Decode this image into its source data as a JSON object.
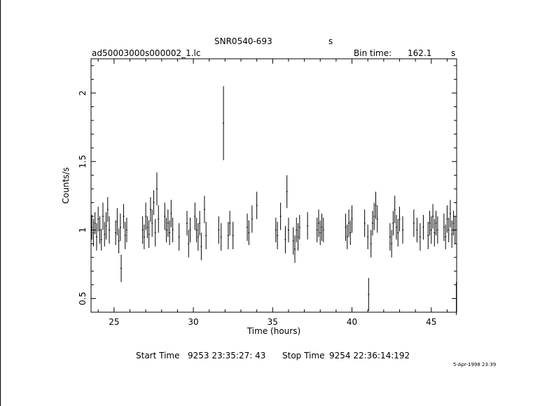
{
  "header": {
    "target": "SNR0540-693",
    "target_suffix": "s",
    "filename": "ad50003000s000002_1.lc",
    "bin_label": "Bin time:",
    "bin_value": "162.1",
    "bin_unit": "s"
  },
  "footer": {
    "start_label": "Start Time",
    "start_value": "9253 23:35:27: 43",
    "stop_label": "Stop Time",
    "stop_value": "9254 22:36:14:192",
    "date_stamp": "5-Apr-1998 23:39"
  },
  "chart_data": {
    "type": "scatter",
    "xlabel": "Time (hours)",
    "ylabel": "Counts/s",
    "xlim": [
      23.55,
      46.6
    ],
    "ylim": [
      0.4,
      2.25
    ],
    "xticks": [
      25,
      30,
      35,
      40,
      45
    ],
    "yticks": [
      0.5,
      1,
      1.5,
      2
    ],
    "ytick_labels": [
      "0.5",
      "1",
      "1.5",
      "2"
    ],
    "series": [
      {
        "points": [
          [
            23.6,
            1.02,
            0.09
          ],
          [
            23.7,
            0.98,
            0.1
          ],
          [
            23.8,
            1.05,
            0.08
          ],
          [
            23.9,
            0.95,
            0.1
          ],
          [
            24.0,
            1.08,
            0.09
          ],
          [
            24.1,
            1.0,
            0.1
          ],
          [
            24.2,
            0.93,
            0.08
          ],
          [
            24.3,
            1.1,
            0.1
          ],
          [
            24.4,
            0.97,
            0.09
          ],
          [
            24.5,
            1.03,
            0.1
          ],
          [
            24.6,
            1.15,
            0.09
          ],
          [
            24.7,
            1.0,
            0.1
          ],
          [
            25.1,
            0.98,
            0.09
          ],
          [
            25.2,
            1.06,
            0.1
          ],
          [
            25.3,
            0.92,
            0.09
          ],
          [
            25.4,
            1.02,
            0.1
          ],
          [
            25.45,
            0.72,
            0.1
          ],
          [
            25.6,
            1.1,
            0.09
          ],
          [
            25.7,
            0.96,
            0.1
          ],
          [
            25.8,
            1.0,
            0.09
          ],
          [
            26.8,
            1.0,
            0.1
          ],
          [
            26.9,
            0.95,
            0.09
          ],
          [
            27.0,
            1.1,
            0.1
          ],
          [
            27.1,
            1.02,
            0.08
          ],
          [
            27.2,
            0.97,
            0.1
          ],
          [
            27.3,
            1.15,
            0.09
          ],
          [
            27.4,
            1.05,
            0.1
          ],
          [
            27.5,
            1.2,
            0.09
          ],
          [
            27.6,
            0.98,
            0.1
          ],
          [
            27.7,
            1.3,
            0.12
          ],
          [
            27.8,
            1.08,
            0.1
          ],
          [
            28.2,
            1.1,
            0.1
          ],
          [
            28.3,
            1.0,
            0.09
          ],
          [
            28.4,
            1.05,
            0.1
          ],
          [
            28.5,
            0.98,
            0.09
          ],
          [
            28.6,
            1.12,
            0.1
          ],
          [
            28.7,
            1.0,
            0.09
          ],
          [
            29.1,
            0.95,
            0.1
          ],
          [
            29.6,
            1.05,
            0.09
          ],
          [
            29.7,
            0.9,
            0.1
          ],
          [
            29.8,
            1.0,
            0.09
          ],
          [
            30.1,
            1.1,
            0.1
          ],
          [
            30.2,
            1.0,
            0.09
          ],
          [
            30.3,
            0.95,
            0.1
          ],
          [
            30.4,
            1.05,
            0.09
          ],
          [
            30.5,
            0.88,
            0.1
          ],
          [
            30.7,
            1.15,
            0.1
          ],
          [
            30.8,
            0.96,
            0.1
          ],
          [
            31.6,
            1.0,
            0.1
          ],
          [
            31.75,
            0.95,
            0.1
          ],
          [
            31.9,
            1.78,
            0.27
          ],
          [
            32.2,
            0.96,
            0.1
          ],
          [
            32.3,
            1.05,
            0.09
          ],
          [
            32.5,
            0.96,
            0.1
          ],
          [
            33.4,
            1.02,
            0.1
          ],
          [
            33.5,
            0.98,
            0.09
          ],
          [
            33.7,
            1.08,
            0.1
          ],
          [
            34.0,
            1.18,
            0.1
          ],
          [
            35.2,
            1.0,
            0.09
          ],
          [
            35.3,
            0.96,
            0.1
          ],
          [
            35.5,
            1.1,
            0.1
          ],
          [
            35.8,
            0.93,
            0.1
          ],
          [
            35.9,
            1.28,
            0.12
          ],
          [
            36.0,
            1.0,
            0.09
          ],
          [
            36.3,
            0.92,
            0.1
          ],
          [
            36.4,
            0.86,
            0.1
          ],
          [
            36.5,
            1.0,
            0.09
          ],
          [
            36.6,
            0.95,
            0.1
          ],
          [
            36.7,
            1.02,
            0.09
          ],
          [
            37.2,
            1.03,
            0.1
          ],
          [
            37.8,
            1.0,
            0.09
          ],
          [
            37.9,
            1.05,
            0.1
          ],
          [
            38.0,
            0.98,
            0.09
          ],
          [
            38.1,
            1.02,
            0.1
          ],
          [
            38.2,
            1.0,
            0.09
          ],
          [
            39.6,
            1.02,
            0.1
          ],
          [
            39.7,
            0.95,
            0.09
          ],
          [
            39.8,
            1.05,
            0.1
          ],
          [
            39.9,
            0.98,
            0.09
          ],
          [
            40.0,
            1.08,
            0.1
          ],
          [
            40.8,
            1.05,
            0.1
          ],
          [
            41.0,
            0.95,
            0.09
          ],
          [
            41.05,
            0.53,
            0.12
          ],
          [
            41.2,
            0.9,
            0.1
          ],
          [
            41.3,
            1.05,
            0.09
          ],
          [
            41.4,
            1.1,
            0.1
          ],
          [
            41.5,
            1.18,
            0.1
          ],
          [
            41.6,
            1.08,
            0.1
          ],
          [
            42.4,
            0.95,
            0.1
          ],
          [
            42.5,
            0.9,
            0.1
          ],
          [
            42.6,
            1.05,
            0.09
          ],
          [
            42.7,
            1.15,
            0.1
          ],
          [
            42.8,
            1.02,
            0.09
          ],
          [
            42.9,
            0.98,
            0.1
          ],
          [
            43.0,
            1.08,
            0.09
          ],
          [
            43.2,
            1.0,
            0.1
          ],
          [
            43.9,
            1.05,
            0.1
          ],
          [
            44.1,
            1.0,
            0.09
          ],
          [
            44.3,
            0.95,
            0.1
          ],
          [
            44.5,
            1.02,
            0.09
          ],
          [
            44.8,
            0.96,
            0.1
          ],
          [
            44.9,
            1.05,
            0.09
          ],
          [
            45.0,
            1.0,
            0.1
          ],
          [
            45.1,
            1.1,
            0.09
          ],
          [
            45.2,
            0.98,
            0.1
          ],
          [
            45.3,
            1.05,
            0.09
          ],
          [
            45.4,
            1.0,
            0.1
          ],
          [
            45.8,
            1.02,
            0.1
          ],
          [
            45.9,
            0.95,
            0.09
          ],
          [
            46.0,
            1.08,
            0.1
          ],
          [
            46.1,
            1.0,
            0.09
          ],
          [
            46.2,
            1.12,
            0.1
          ],
          [
            46.3,
            0.97,
            0.1
          ],
          [
            46.4,
            1.05,
            0.09
          ],
          [
            46.5,
            1.0,
            0.1
          ],
          [
            46.58,
            0.5,
            0.12
          ]
        ]
      }
    ]
  }
}
